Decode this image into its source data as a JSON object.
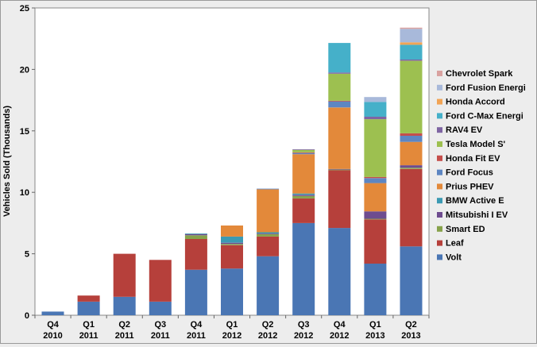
{
  "chart_data": {
    "type": "bar",
    "stacked": true,
    "ylabel": "Vehicles Sold (Thousands)",
    "xlabel": "",
    "ylim": [
      0,
      25
    ],
    "yticks": [
      0,
      5,
      10,
      15,
      20,
      25
    ],
    "grid": false,
    "legend_position": "right",
    "categories": [
      [
        "Q4",
        "2010"
      ],
      [
        "Q1",
        "2011"
      ],
      [
        "Q2",
        "2011"
      ],
      [
        "Q3",
        "2011"
      ],
      [
        "Q4",
        "2011"
      ],
      [
        "Q1",
        "2012"
      ],
      [
        "Q2",
        "2012"
      ],
      [
        "Q3",
        "2012"
      ],
      [
        "Q4",
        "2012"
      ],
      [
        "Q1",
        "2013"
      ],
      [
        "Q2",
        "2013"
      ]
    ],
    "series": [
      {
        "name": "Volt",
        "color": "#4a76b4",
        "values": [
          0.3,
          1.1,
          1.5,
          1.1,
          3.7,
          3.8,
          4.8,
          7.5,
          7.1,
          4.2,
          5.6
        ]
      },
      {
        "name": "Leaf",
        "color": "#b6403b",
        "values": [
          0.0,
          0.5,
          3.5,
          3.4,
          2.5,
          1.9,
          1.6,
          2.0,
          4.7,
          3.6,
          6.3
        ]
      },
      {
        "name": "Smart ED",
        "color": "#87a24b",
        "values": [
          0,
          0,
          0,
          0,
          0.3,
          0.1,
          0.2,
          0.2,
          0.05,
          0.05,
          0.1
        ]
      },
      {
        "name": "Mitsubishi I EV",
        "color": "#6e4c8f",
        "values": [
          0,
          0,
          0,
          0,
          0.1,
          0.1,
          0.05,
          0.1,
          0.05,
          0.6,
          0.2
        ]
      },
      {
        "name": "BMW Active E",
        "color": "#3b9ab3",
        "values": [
          0,
          0,
          0,
          0,
          0.05,
          0.5,
          0.1,
          0.1,
          0,
          0,
          0
        ]
      },
      {
        "name": "Prius PHEV",
        "color": "#e3893a",
        "values": [
          0,
          0,
          0,
          0,
          0,
          0.9,
          3.5,
          3.2,
          5.0,
          2.3,
          1.9
        ]
      },
      {
        "name": "Ford Focus",
        "color": "#5d86c2",
        "values": [
          0,
          0,
          0,
          0,
          0,
          0,
          0.05,
          0.1,
          0.5,
          0.4,
          0.5
        ]
      },
      {
        "name": "Honda Fit EV",
        "color": "#c54e4b",
        "values": [
          0,
          0,
          0,
          0,
          0,
          0,
          0,
          0.05,
          0.05,
          0.1,
          0.2
        ]
      },
      {
        "name": "Tesla Model S'",
        "color": "#9dc050",
        "values": [
          0,
          0,
          0,
          0,
          0,
          0,
          0,
          0.2,
          2.2,
          4.7,
          5.9
        ]
      },
      {
        "name": "RAV4 EV",
        "color": "#7f65a3",
        "values": [
          0,
          0,
          0,
          0,
          0,
          0,
          0,
          0.05,
          0.1,
          0.2,
          0.1
        ]
      },
      {
        "name": "Ford C-Max Energi",
        "color": "#45b0c9",
        "values": [
          0,
          0,
          0,
          0,
          0,
          0,
          0,
          0,
          2.4,
          1.2,
          1.2
        ]
      },
      {
        "name": "Honda Accord",
        "color": "#f2a455",
        "values": [
          0,
          0,
          0,
          0,
          0,
          0,
          0,
          0,
          0,
          0,
          0.2
        ]
      },
      {
        "name": "Ford Fusion Energi",
        "color": "#a8b9da",
        "values": [
          0,
          0,
          0,
          0,
          0,
          0,
          0,
          0,
          0,
          0.4,
          1.1
        ]
      },
      {
        "name": "Chevrolet Spark",
        "color": "#d9a2a0",
        "values": [
          0,
          0,
          0,
          0,
          0,
          0,
          0,
          0,
          0,
          0,
          0.1
        ]
      }
    ]
  }
}
